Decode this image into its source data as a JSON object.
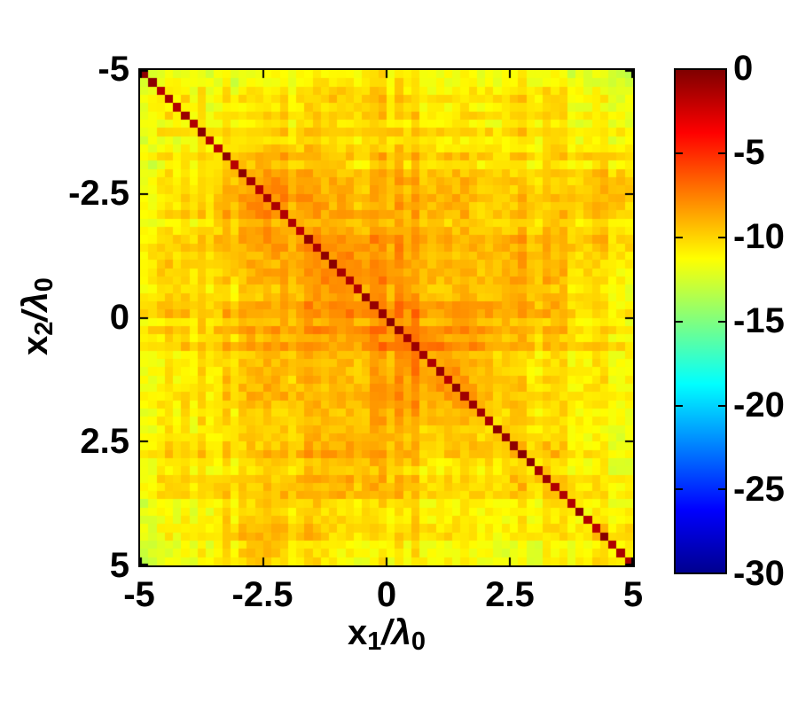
{
  "page": {
    "background": "#ffffff"
  },
  "chart_data": {
    "type": "heatmap",
    "title": "",
    "description": "Square coherence matrix between positions x1 and x2 (in units of wavelength lambda0). Values in the colorbar span 0 to -30. A dark-red diagonal at x1=x2 holds values near 0; off-diagonal background is yellow-orange around -8 near the center fading to about -12 toward edges and corners, with symmetric row/column streak noise.",
    "x_axis": {
      "label_base": "x",
      "label_base_sub": "1",
      "label_sep": "/",
      "label_denom": "λ",
      "label_denom_sub": "0",
      "range": [
        -5,
        5
      ],
      "tick_values": [
        -5,
        -2.5,
        0,
        2.5,
        5
      ],
      "tick_labels": [
        "-5",
        "-2.5",
        "0",
        "2.5",
        "5"
      ]
    },
    "y_axis": {
      "label_base": "x",
      "label_base_sub": "2",
      "label_sep": "/",
      "label_denom": "λ",
      "label_denom_sub": "0",
      "range": [
        -5,
        5
      ],
      "direction": "reversed",
      "tick_values": [
        -5,
        -2.5,
        0,
        2.5,
        5
      ],
      "tick_labels": [
        "-5",
        "-2.5",
        "0",
        "2.5",
        "5"
      ]
    },
    "grid_size": 60,
    "value_model": {
      "center_db": -8.2,
      "edge_db": -11.9,
      "gauss_sigma": 3.4,
      "streak_amplitude": 1.2,
      "cell_noise_amplitude": 1.5,
      "blotch_amplitude": 0.45,
      "diagonal_max_db": -0.2,
      "diagonal_min_db": -1.8
    },
    "colorbar": {
      "range": [
        -30,
        0
      ],
      "tick_values": [
        0,
        -5,
        -10,
        -15,
        -20,
        -25,
        -30
      ],
      "tick_labels": [
        "0",
        "-5",
        "-10",
        "-15",
        "-20",
        "-25",
        "-30"
      ],
      "colormap": "jet",
      "stops": [
        {
          "pos": 0.0,
          "color": "#00008F"
        },
        {
          "pos": 0.125,
          "color": "#0000FF"
        },
        {
          "pos": 0.375,
          "color": "#00FFFF"
        },
        {
          "pos": 0.625,
          "color": "#FFFF00"
        },
        {
          "pos": 0.875,
          "color": "#FF0000"
        },
        {
          "pos": 1.0,
          "color": "#7F0000"
        }
      ]
    },
    "frame_color": "#000000",
    "text_color": "#000000",
    "grid": "off",
    "legend": "none"
  }
}
